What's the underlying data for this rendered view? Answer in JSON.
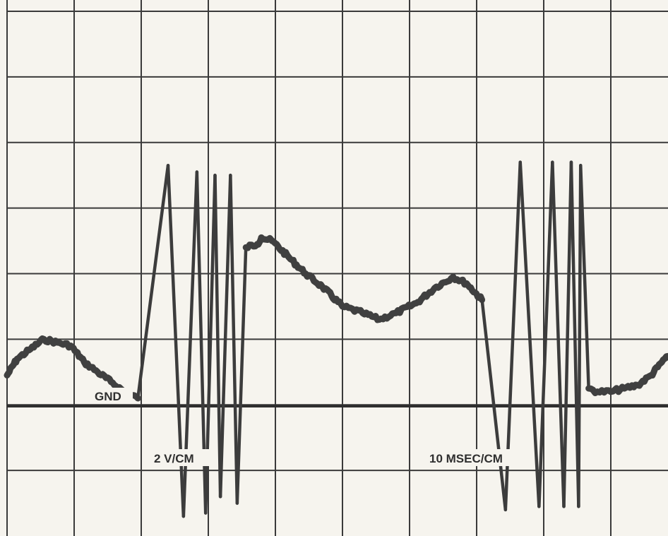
{
  "chart_data": {
    "type": "line",
    "title": "",
    "xlabel": "",
    "ylabel": "",
    "grid": true,
    "grid_divisions": {
      "x": 10,
      "y": 8
    },
    "x_unit": "ms",
    "y_unit": "V",
    "xlim": [
      0,
      100
    ],
    "ylim": [
      -2,
      14
    ],
    "labels": {
      "gnd": "GND",
      "vertical_scale": "2 V/CM",
      "time_base": "10 MSEC/CM"
    },
    "series": [
      {
        "x": [
          0,
          1.5,
          3.5,
          5.5,
          7.5,
          9.5,
          11.5,
          13.5,
          15.5,
          17.5,
          19.5,
          24,
          26.3,
          28.3,
          29.6,
          31.0,
          31.8,
          33.3,
          34.3,
          35.6,
          37.3,
          37.9,
          39.5,
          42,
          44.5,
          47,
          50,
          53,
          55.5,
          58,
          61,
          64,
          66.5,
          68.5,
          70.8,
          74.3,
          76.5,
          79.3,
          81.3,
          83.0,
          84.1,
          85.2,
          85.5,
          86.7,
          88,
          90,
          92,
          94,
          96,
          98,
          100
        ],
        "y": [
          2.9,
          3.4,
          3.7,
          4.0,
          3.9,
          3.8,
          3.3,
          3.0,
          2.7,
          2.4,
          2.2,
          9.3,
          -1.4,
          9.1,
          -1.3,
          9.0,
          -0.8,
          9.0,
          -1.0,
          6.8,
          6.9,
          7.1,
          7.0,
          6.5,
          6.0,
          5.6,
          5.0,
          4.8,
          4.6,
          4.8,
          5.1,
          5.6,
          5.9,
          5.7,
          5.2,
          -1.2,
          9.4,
          -1.1,
          9.4,
          -1.1,
          9.4,
          -1.1,
          9.3,
          2.5,
          2.4,
          2.4,
          2.5,
          2.6,
          2.9,
          3.4,
          3.5
        ]
      }
    ]
  }
}
